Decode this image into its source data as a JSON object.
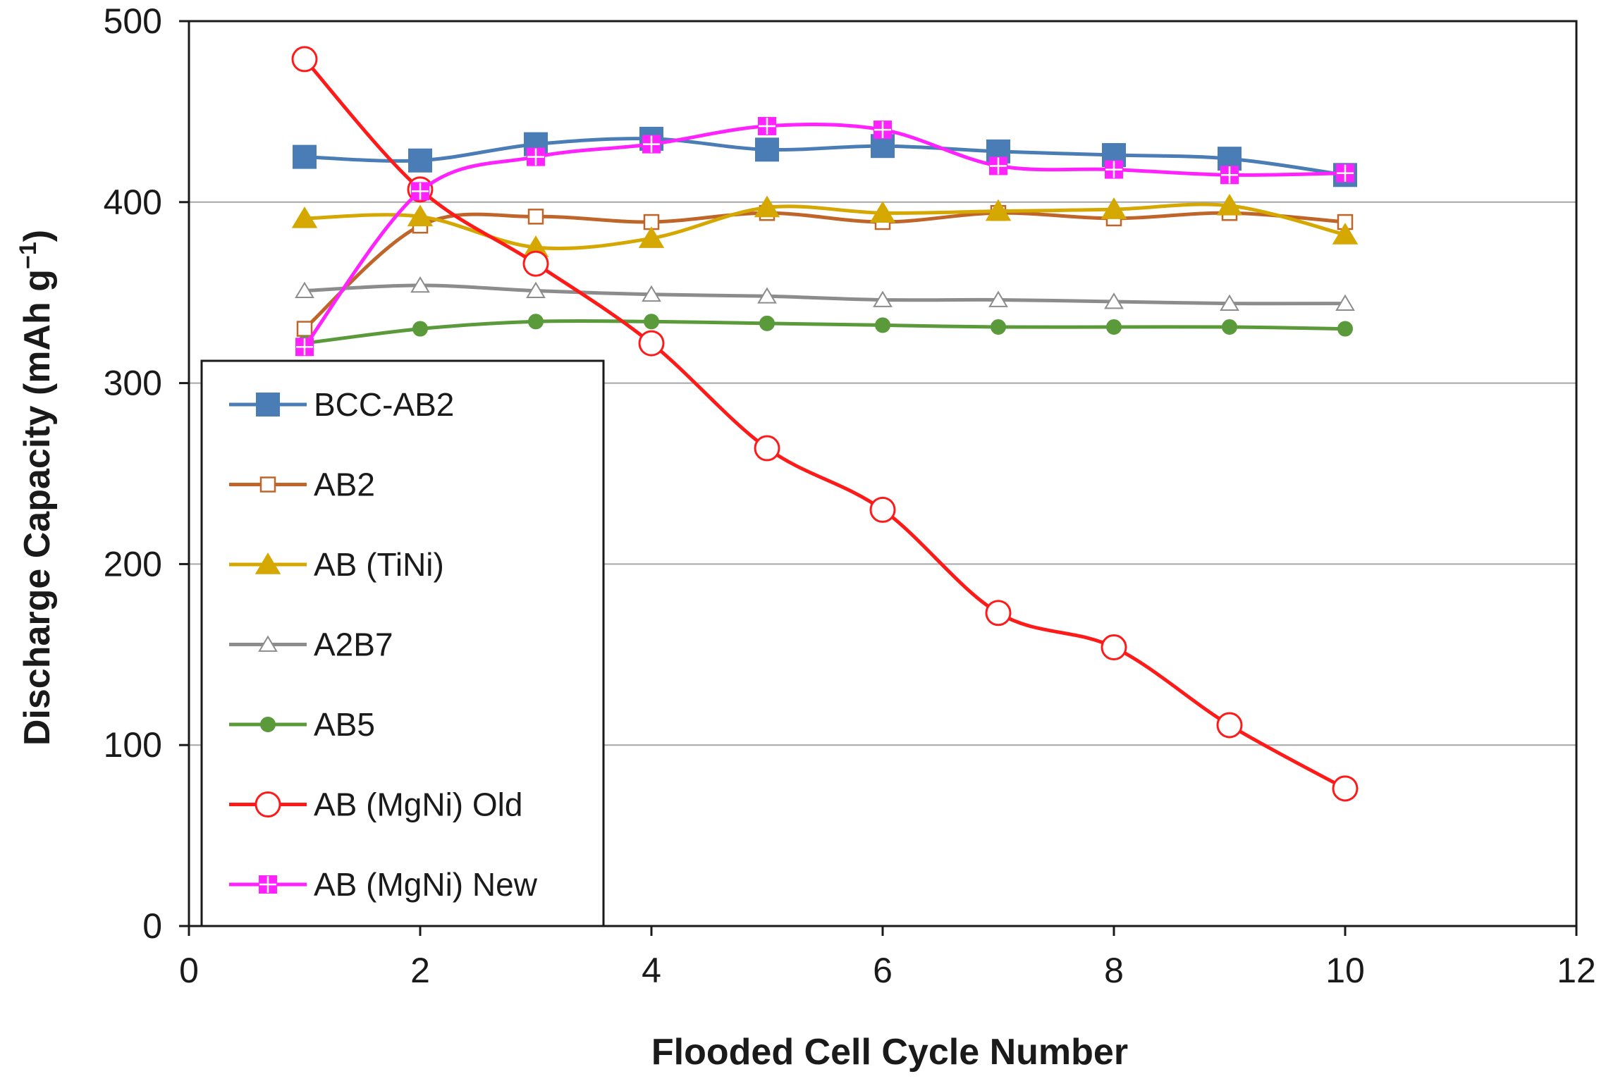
{
  "chart_data": {
    "type": "line",
    "title": "",
    "xlabel": "Flooded Cell Cycle Number",
    "ylabel_main": "Discharge Capacity (mAh g",
    "ylabel_sup": "−1",
    "ylabel_close": ")",
    "xlim": [
      0,
      12
    ],
    "ylim": [
      0,
      500
    ],
    "xticks": [
      0,
      2,
      4,
      6,
      8,
      10,
      12
    ],
    "yticks": [
      0,
      100,
      200,
      300,
      400,
      500
    ],
    "xtick_labels": [
      "0",
      "2",
      "4",
      "6",
      "8",
      "10",
      "12"
    ],
    "ytick_labels": [
      "0",
      "100",
      "200",
      "300",
      "400",
      "500"
    ],
    "gridlines": "horizontal",
    "legend_position": "bottom-left",
    "x": [
      1,
      2,
      3,
      4,
      5,
      6,
      7,
      8,
      9,
      10
    ],
    "series": [
      {
        "name": "BCC-AB2",
        "color": "#4a7db5",
        "marker": "square-filled",
        "values": [
          425,
          423,
          432,
          435,
          429,
          431,
          428,
          426,
          424,
          415
        ]
      },
      {
        "name": "AB2",
        "color": "#c0652a",
        "marker": "square-open",
        "values": [
          330,
          387,
          392,
          389,
          394,
          389,
          394,
          391,
          394,
          389
        ]
      },
      {
        "name": "AB (TiNi)",
        "color": "#d4a800",
        "marker": "triangle-filled",
        "values": [
          391,
          392,
          375,
          380,
          397,
          394,
          395,
          396,
          398,
          382
        ]
      },
      {
        "name": "A2B7",
        "color": "#8c8c8c",
        "marker": "triangle-open",
        "values": [
          351,
          354,
          351,
          349,
          348,
          346,
          346,
          345,
          344,
          344
        ]
      },
      {
        "name": "AB5",
        "color": "#5a9a3a",
        "marker": "circle-filled",
        "values": [
          322,
          330,
          334,
          334,
          333,
          332,
          331,
          331,
          331,
          330
        ]
      },
      {
        "name": "AB (MgNi) Old",
        "color": "#ff1a1a",
        "marker": "circle-open",
        "values": [
          479,
          407,
          366,
          322,
          264,
          230,
          173,
          154,
          111,
          76
        ]
      },
      {
        "name": "AB (MgNi) New",
        "color": "#ff22ff",
        "marker": "square-cross",
        "values": [
          320,
          406,
          425,
          432,
          442,
          440,
          420,
          418,
          415,
          416
        ]
      }
    ]
  }
}
